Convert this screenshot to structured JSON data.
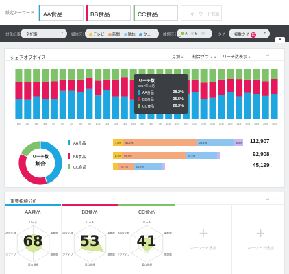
{
  "keyword_bar": {
    "label": "設定キーワード",
    "keywords": [
      {
        "name": "AA食品",
        "color": "#1ea6e0"
      },
      {
        "name": "BB食品",
        "color": "#e4185a"
      },
      {
        "name": "CC食品",
        "color": "#7ec36a"
      }
    ],
    "add_label": "+ キーワード追加"
  },
  "filter_bar": {
    "target_label": "対象記事",
    "target_value": "全記事",
    "media_label": "媒体区分",
    "media": [
      {
        "name": "テレビ",
        "color": "#f5c53a"
      },
      {
        "name": "新聞",
        "color": "#f0a070"
      },
      {
        "name": "雑誌",
        "color": "#8bc6f0"
      },
      {
        "name": "ウェブ",
        "color": "#4aa6e8"
      }
    ],
    "eval_label": "論調区分",
    "eval": [
      {
        "name": "A",
        "color": "#8bc34a"
      },
      {
        "name": "B",
        "color": "#cfd3d6"
      },
      {
        "name": "C",
        "color": "#cfd3d6"
      }
    ],
    "tag_label": "タグ",
    "tag_value": "複数タグ",
    "tag_count": "13",
    "collapse_icon": "chevron-up-icon"
  },
  "share_panel": {
    "title": "シェアオブボイス",
    "controls": {
      "period": "月別",
      "graph": "割合グラフ",
      "metric": "リーチ数表示"
    },
    "tooltip": {
      "title": "リーチ数",
      "date": "2017年10月",
      "rows": [
        {
          "name": "AA食品",
          "value": "38.2%",
          "color": "#1ea6e0"
        },
        {
          "name": "BB食品",
          "value": "35.5%",
          "color": "#e4185a"
        },
        {
          "name": "CC食品",
          "value": "26.3%",
          "color": "#7ec36a"
        }
      ]
    },
    "donut_label": "リーチ数",
    "donut_sub": "割合",
    "legend": [
      {
        "name": "AA食品",
        "color": "#1ea6e0",
        "total": "112,907",
        "segments": [
          {
            "label": "7.8%",
            "value": 7.8,
            "color": "#f5c53a"
          },
          {
            "label": "56.2%",
            "value": 56.2,
            "color": "#f4a87e"
          },
          {
            "label": "28.1%",
            "value": 28.1,
            "color": "#8ec5f0"
          },
          {
            "label": "6.9%",
            "value": 6.9,
            "color": "#c9b8ef"
          }
        ]
      },
      {
        "name": "BB食品",
        "color": "#e4185a",
        "total": "92,908",
        "segments": [
          {
            "label": "8.4%",
            "value": 8.4,
            "color": "#f5c53a"
          },
          {
            "label": "59.5%",
            "value": 59.5,
            "color": "#f4a87e"
          },
          {
            "label": "29.4%",
            "value": 29.4,
            "color": "#8ec5f0"
          },
          {
            "label": "",
            "value": 2.7,
            "color": "#c9b8ef"
          }
        ]
      },
      {
        "name": "CC食品",
        "color": "#7ec36a",
        "total": "45,199",
        "segments": [
          {
            "label": "",
            "value": 8.0,
            "color": "#f5c53a"
          },
          {
            "label": "24.1%",
            "value": 24.1,
            "color": "#f4a87e"
          },
          {
            "label": "43.0%",
            "value": 43.0,
            "color": "#8ec5f0"
          },
          {
            "label": "",
            "value": 4.9,
            "color": "#c9b8ef"
          }
        ]
      }
    ]
  },
  "indicator_panel": {
    "title": "重要指標分析",
    "axes": [
      "リーチ",
      "掲載数",
      "推奨数",
      "重点指標",
      "ポジティブ",
      "SNS反応数"
    ],
    "cards": [
      {
        "name": "AA食品",
        "score": "68",
        "color": "#1ea6e0",
        "values": [
          0.55,
          0.55,
          0.5,
          0.45,
          0.45,
          0.5
        ]
      },
      {
        "name": "BB食品",
        "score": "53",
        "color": "#e4185a",
        "values": [
          0.25,
          0.45,
          0.85,
          0.35,
          0.55,
          0.5
        ]
      },
      {
        "name": "CC食品",
        "score": "41",
        "color": "#7ec36a",
        "values": [
          0.3,
          0.4,
          0.35,
          0.45,
          0.3,
          0.45
        ]
      }
    ],
    "add_label": "キーワード追加"
  },
  "chart_data": [
    {
      "type": "bar",
      "stacked": true,
      "categories": [
        "1月",
        "2月",
        "3月",
        "4月",
        "5月",
        "6月",
        "7月",
        "8月",
        "9月",
        "10月",
        "11月",
        "12月",
        "13月",
        "14月",
        "15月",
        "16月",
        "17月",
        "18月",
        "19月",
        "20月",
        "21月",
        "22月",
        "23月",
        "24月",
        "25月",
        "26月",
        "27月",
        "28月",
        "29月",
        "30月"
      ],
      "series": [
        {
          "name": "AA食品",
          "color": "#1ea6e0",
          "values": [
            40,
            38,
            45,
            40,
            40,
            56,
            56,
            53,
            60,
            47,
            58,
            45,
            45,
            38,
            28,
            42,
            38,
            30,
            40,
            50,
            54,
            40,
            42,
            48,
            54,
            45,
            52,
            50,
            46,
            50
          ]
        },
        {
          "name": "BB食品",
          "color": "#e4185a",
          "values": [
            35,
            37,
            30,
            35,
            36,
            22,
            22,
            25,
            22,
            30,
            20,
            33,
            38,
            40,
            50,
            36,
            36,
            45,
            38,
            28,
            24,
            33,
            32,
            30,
            26,
            34,
            26,
            28,
            30,
            30
          ]
        },
        {
          "name": "CC食品",
          "color": "#7ec36a",
          "values": [
            25,
            25,
            25,
            25,
            24,
            22,
            22,
            22,
            18,
            23,
            22,
            22,
            17,
            22,
            22,
            22,
            26,
            25,
            22,
            22,
            22,
            27,
            26,
            22,
            20,
            21,
            22,
            22,
            24,
            20
          ]
        }
      ],
      "ylim": [
        0,
        100
      ]
    },
    {
      "type": "pie",
      "categories": [
        "AA食品",
        "BB食品",
        "CC食品"
      ],
      "values": [
        112907,
        92908,
        45199
      ]
    }
  ]
}
